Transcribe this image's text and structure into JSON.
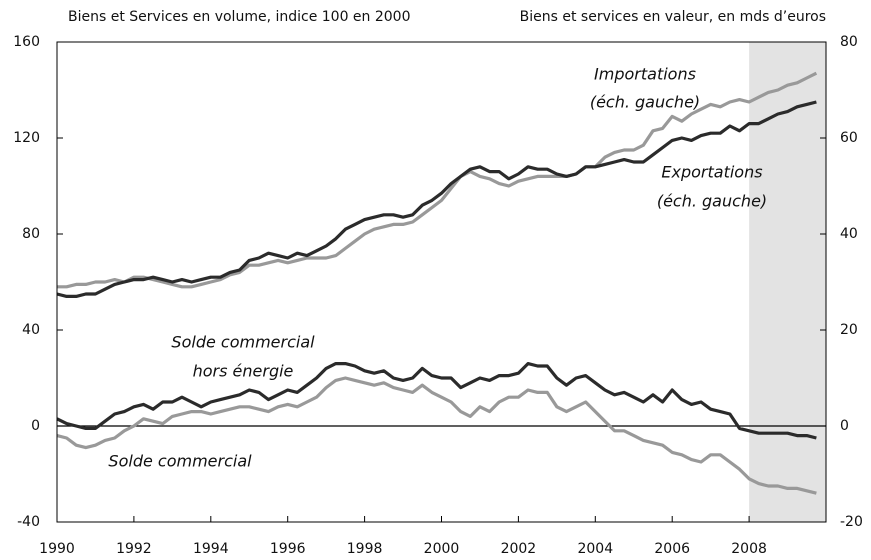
{
  "chart_data": {
    "type": "line",
    "ylabel": "Biens et Services en volume, indice 100 en 2000",
    "y2label": "Biens et services en valeur, en mds d’euros",
    "xlim": [
      1990,
      2010
    ],
    "xticks": [
      1990,
      1992,
      1994,
      1996,
      1998,
      2000,
      2002,
      2004,
      2006,
      2008
    ],
    "ylim": [
      -40,
      160
    ],
    "yticks": [
      160,
      120,
      80,
      40,
      0,
      -40
    ],
    "y2lim": [
      -20,
      80
    ],
    "y2ticks": [
      80,
      60,
      40,
      20,
      0,
      -20
    ],
    "shaded_xlim": [
      2008,
      2010
    ],
    "annotations": [
      "Importations",
      "(éch. gauche)",
      "Exportations",
      "(éch. gauche)",
      "Solde commercial",
      "hors énergie",
      "Solde commercial"
    ],
    "x": [
      1990,
      1990.25,
      1990.5,
      1990.75,
      1991,
      1991.25,
      1991.5,
      1991.75,
      1992,
      1992.25,
      1992.5,
      1992.75,
      1993,
      1993.25,
      1993.5,
      1993.75,
      1994,
      1994.25,
      1994.5,
      1994.75,
      1995,
      1995.25,
      1995.5,
      1995.75,
      1996,
      1996.25,
      1996.5,
      1996.75,
      1997,
      1997.25,
      1997.5,
      1997.75,
      1998,
      1998.25,
      1998.5,
      1998.75,
      1999,
      1999.25,
      1999.5,
      1999.75,
      2000,
      2000.25,
      2000.5,
      2000.75,
      2001,
      2001.25,
      2001.5,
      2001.75,
      2002,
      2002.25,
      2002.5,
      2002.75,
      2003,
      2003.25,
      2003.5,
      2003.75,
      2004,
      2004.25,
      2004.5,
      2004.75,
      2005,
      2005.25,
      2005.5,
      2005.75,
      2006,
      2006.25,
      2006.5,
      2006.75,
      2007,
      2007.25,
      2007.5,
      2007.75,
      2008,
      2008.25,
      2008.5,
      2008.75,
      2009,
      2009.25,
      2009.5,
      2009.75
    ],
    "series": [
      {
        "color": "#999999",
        "axis": "y",
        "values": [
          58,
          58,
          59,
          59,
          60,
          60,
          61,
          60,
          62,
          62,
          61,
          60,
          59,
          58,
          58,
          59,
          60,
          61,
          63,
          64,
          67,
          67,
          68,
          69,
          68,
          69,
          70,
          70,
          70,
          71,
          74,
          77,
          80,
          82,
          83,
          84,
          84,
          85,
          88,
          91,
          94,
          99,
          104,
          106,
          104,
          103,
          101,
          100,
          102,
          103,
          104,
          104,
          104,
          104,
          105,
          108,
          108,
          112,
          114,
          115,
          115,
          117,
          123,
          124,
          129,
          127,
          130,
          132,
          134,
          133,
          135,
          136,
          135,
          137,
          139,
          140,
          142,
          143,
          145,
          147
        ]
      },
      {
        "color": "#2b2b2b",
        "axis": "y",
        "values": [
          55,
          54,
          54,
          55,
          55,
          57,
          59,
          60,
          61,
          61,
          62,
          61,
          60,
          61,
          60,
          61,
          62,
          62,
          64,
          65,
          69,
          70,
          72,
          71,
          70,
          72,
          71,
          73,
          75,
          78,
          82,
          84,
          86,
          87,
          88,
          88,
          87,
          88,
          92,
          94,
          97,
          101,
          104,
          107,
          108,
          106,
          106,
          103,
          105,
          108,
          107,
          107,
          105,
          104,
          105,
          108,
          108,
          109,
          110,
          111,
          110,
          110,
          113,
          116,
          119,
          120,
          119,
          121,
          122,
          122,
          125,
          123,
          126,
          126,
          128,
          130,
          131,
          133,
          134,
          135
        ]
      },
      {
        "color": "#2b2b2b",
        "axis": "y2",
        "values": [
          1.5,
          0.5,
          0,
          -0.5,
          -0.5,
          1,
          2.5,
          3,
          4,
          4.5,
          3.5,
          5,
          5,
          6,
          5,
          4,
          5,
          5.5,
          6,
          6.5,
          7.5,
          7,
          5.5,
          6.5,
          7.5,
          7,
          8.5,
          10,
          12,
          13,
          13,
          12.5,
          11.5,
          11,
          11.5,
          10,
          9.5,
          10,
          12,
          10.5,
          10,
          10,
          8,
          9,
          10,
          9.5,
          10.5,
          10.5,
          11,
          13,
          12.5,
          12.5,
          10,
          8.5,
          10,
          10.5,
          9,
          7.5,
          6.5,
          7,
          6,
          5,
          6.5,
          5,
          7.5,
          5.5,
          4.5,
          5,
          3.5,
          3,
          2.5,
          -0.5,
          -1,
          -1.5,
          -1.5,
          -1.5,
          -1.5,
          -2,
          -2,
          -2.5
        ]
      },
      {
        "color": "#999999",
        "axis": "y2",
        "values": [
          -2,
          -2.5,
          -4,
          -4.5,
          -4,
          -3,
          -2.5,
          -1,
          0,
          1.5,
          1,
          0.5,
          2,
          2.5,
          3,
          3,
          2.5,
          3,
          3.5,
          4,
          4,
          3.5,
          3,
          4,
          4.5,
          4,
          5,
          6,
          8,
          9.5,
          10,
          9.5,
          9,
          8.5,
          9,
          8,
          7.5,
          7,
          8.5,
          7,
          6,
          5,
          3,
          2,
          4,
          3,
          5,
          6,
          6,
          7.5,
          7,
          7,
          4,
          3,
          4,
          5,
          3,
          1,
          -1,
          -1,
          -2,
          -3,
          -3.5,
          -4,
          -5.5,
          -6,
          -7,
          -7.5,
          -6,
          -6,
          -7.5,
          -9,
          -11,
          -12,
          -12.5,
          -12.5,
          -13,
          -13,
          -13.5,
          -14
        ]
      }
    ]
  }
}
